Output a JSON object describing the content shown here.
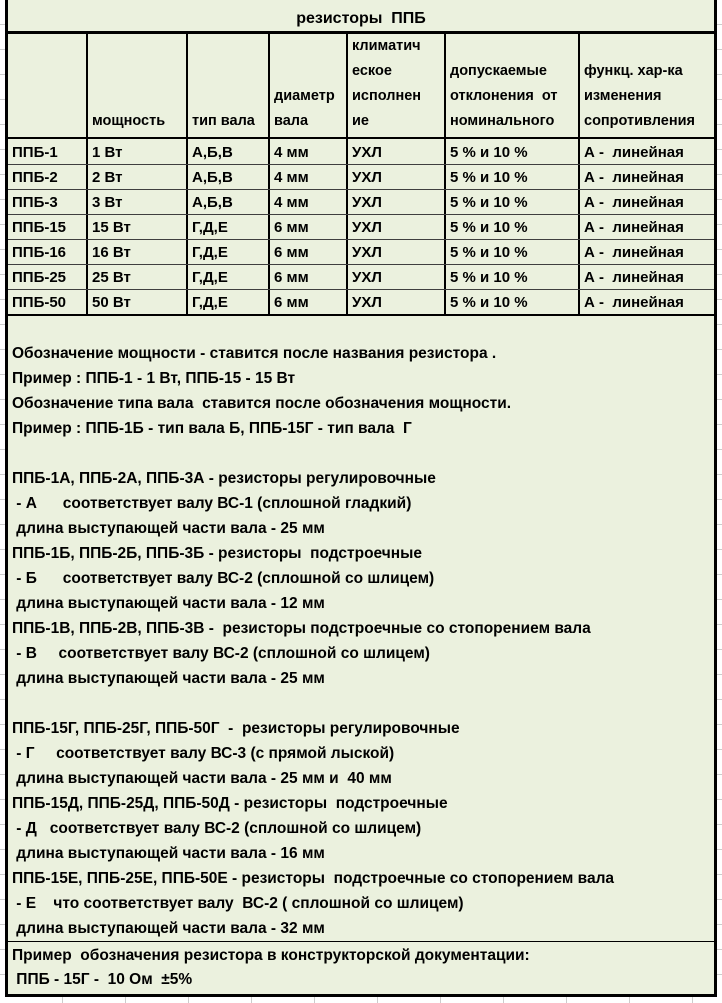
{
  "sheet": {
    "title": "резисторы  ППБ",
    "colors": {
      "fill": "#ebf1de",
      "border": "#000000",
      "gridline": "#cccccc",
      "background": "#ffffff",
      "text": "#000000"
    }
  },
  "table": {
    "columns": [
      {
        "key": "name",
        "label": ""
      },
      {
        "key": "power",
        "label": "мощность"
      },
      {
        "key": "shaft-type",
        "label": "тип вала"
      },
      {
        "key": "shaft-diameter",
        "label": "диаметр\nвала"
      },
      {
        "key": "climate",
        "label": "климатич\nеское\nисполнен\nие"
      },
      {
        "key": "tolerance",
        "label": "допускаемые\nотклонения  от\nноминального"
      },
      {
        "key": "function",
        "label": "функц. хар-ка\nизменения\nсопротивления"
      }
    ],
    "rows": [
      [
        "ППБ-1",
        "1 Вт",
        "А,Б,В",
        "4 мм",
        "УХЛ",
        "5 % и 10 %",
        "А -  линейная"
      ],
      [
        "ППБ-2",
        "2 Вт",
        "А,Б,В",
        "4 мм",
        "УХЛ",
        "5 % и 10 %",
        "А -  линейная"
      ],
      [
        "ППБ-3",
        "3 Вт",
        "А,Б,В",
        "4 мм",
        "УХЛ",
        "5 % и 10 %",
        "А -  линейная"
      ],
      [
        "ППБ-15",
        "15 Вт",
        "Г,Д,Е",
        "6 мм",
        "УХЛ",
        "5 % и 10 %",
        "А -  линейная"
      ],
      [
        "ППБ-16",
        "16 Вт",
        "Г,Д,Е",
        "6 мм",
        "УХЛ",
        "5 % и 10 %",
        "А -  линейная"
      ],
      [
        "ППБ-25",
        "25 Вт",
        "Г,Д,Е",
        "6 мм",
        "УХЛ",
        "5 % и 10 %",
        "А -  линейная"
      ],
      [
        "ППБ-50",
        "50 Вт",
        "Г,Д,Е",
        "6 мм",
        "УХЛ",
        "5 % и 10 %",
        "А -  линейная"
      ]
    ]
  },
  "notes": {
    "lines": [
      "",
      "Обозначение мощности - ставится после названия резистора .",
      "Пример : ППБ-1 - 1 Вт, ППБ-15 - 15 Вт",
      "Обозначение типа вала  ставится после обозначения мощности.",
      "Пример : ППБ-1Б - тип вала Б, ППБ-15Г - тип вала  Г",
      "",
      "ППБ-1А, ППБ-2А, ППБ-3А - резисторы регулировочные",
      " - А      соответствует валу ВС-1 (сплошной гладкий)",
      " длина выступающей части вала - 25 мм",
      "ППБ-1Б, ППБ-2Б, ППБ-3Б - резисторы  подстроечные",
      " - Б      соответствует валу ВС-2 (сплошной со шлицем)",
      " длина выступающей части вала - 12 мм",
      "ППБ-1В, ППБ-2В, ППБ-3В -  резисторы подстроечные со стопорением вала",
      " - В     соответствует валу ВС-2 (сплошной со шлицем)",
      " длина выступающей части вала - 25 мм",
      "",
      "ППБ-15Г, ППБ-25Г, ППБ-50Г  -  резисторы регулировочные",
      " - Г     соответствует валу ВС-3 (с прямой лыской)",
      " длина выступающей части вала - 25 мм и  40 мм",
      "ППБ-15Д, ППБ-25Д, ППБ-50Д - резисторы  подстроечные",
      " - Д   соответствует валу ВС-2 (сплошной со шлицем)",
      " длина выступающей части вала - 16 мм",
      "ППБ-15Е, ППБ-25Е, ППБ-50Е - резисторы  подстроечные со стопорением вала",
      " - Е    что соответствует валу  ВС-2 ( сплошной со шлицем)",
      " длина выступающей части вала - 32 мм"
    ]
  },
  "example": {
    "line1": "Пример  обозначения резистора в конструкторской документации:",
    "line2": " ППБ - 15Г -  10 Ом  ±5%"
  }
}
